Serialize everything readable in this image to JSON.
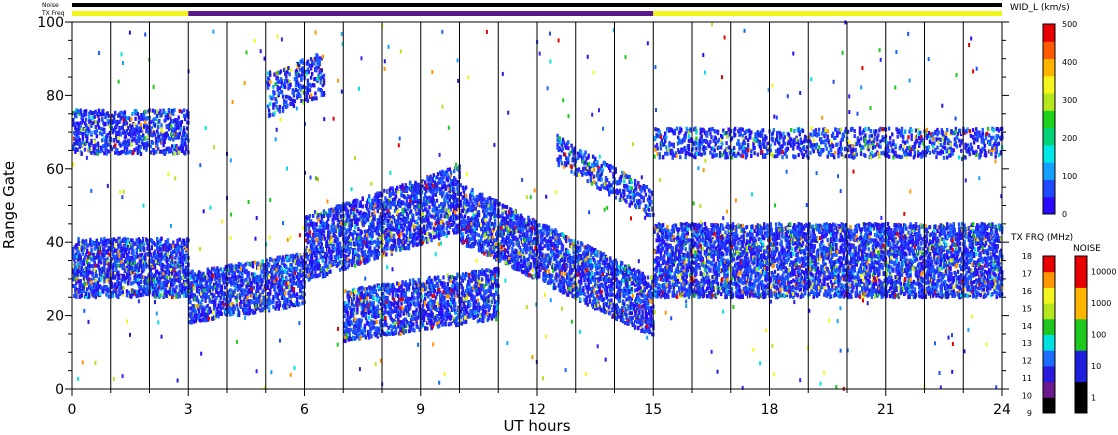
{
  "header": {
    "noise_label": "Noise",
    "txfreq_label": "TX Freq"
  },
  "chart_data": {
    "type": "heatmap",
    "xlabel": "UT hours",
    "ylabel": "Range Gate",
    "xlim": [
      0,
      24
    ],
    "ylim": [
      0,
      100
    ],
    "x_ticks": [
      0,
      3,
      6,
      9,
      12,
      15,
      18,
      21,
      24
    ],
    "y_ticks": [
      0,
      20,
      40,
      60,
      80,
      100
    ],
    "scan_boundaries_hours": [
      1,
      2,
      3,
      4,
      5,
      6,
      7,
      8,
      9,
      10,
      11,
      12,
      13,
      14,
      15,
      16,
      17,
      18,
      19,
      20,
      21,
      22,
      23,
      24
    ],
    "mode_bar": [
      {
        "from": 0,
        "to": 3,
        "color": "#f5f51e"
      },
      {
        "from": 3,
        "to": 15,
        "color": "#5a1a8c"
      },
      {
        "from": 15,
        "to": 24,
        "color": "#f5f51e"
      }
    ],
    "noise_bar_color": "#000000",
    "scatter_bands": [
      {
        "from": 0,
        "to": 3,
        "center_start": 33,
        "center_end": 33,
        "width": 8,
        "density": 0.95
      },
      {
        "from": 0,
        "to": 3,
        "center_start": 70,
        "center_end": 70,
        "width": 6,
        "density": 0.6
      },
      {
        "from": 3,
        "to": 6,
        "center_start": 25,
        "center_end": 30,
        "width": 7,
        "density": 0.9
      },
      {
        "from": 5,
        "to": 6.5,
        "center_start": 80,
        "center_end": 86,
        "width": 6,
        "density": 0.45
      },
      {
        "from": 6,
        "to": 10,
        "center_start": 38,
        "center_end": 52,
        "width": 9,
        "density": 0.85
      },
      {
        "from": 7,
        "to": 11,
        "center_start": 20,
        "center_end": 26,
        "width": 7,
        "density": 0.85
      },
      {
        "from": 10,
        "to": 15,
        "center_start": 48,
        "center_end": 22,
        "width": 8,
        "density": 0.9
      },
      {
        "from": 12.5,
        "to": 15,
        "center_start": 65,
        "center_end": 50,
        "width": 4,
        "density": 0.55
      },
      {
        "from": 15,
        "to": 24,
        "center_start": 35,
        "center_end": 35,
        "width": 10,
        "density": 0.95
      },
      {
        "from": 15,
        "to": 24,
        "center_start": 67,
        "center_end": 67,
        "width": 4,
        "density": 0.5
      }
    ],
    "velocity_colorbar": {
      "label": "WID_L (km/s)",
      "ticks": [
        0,
        100,
        200,
        300,
        400,
        500
      ],
      "colors": [
        "#2a0aff",
        "#1e4bff",
        "#14a0ff",
        "#00e5e5",
        "#00d27a",
        "#1ed21e",
        "#b4e61e",
        "#f5f51e",
        "#ffb400",
        "#ff5a00",
        "#e60000"
      ]
    },
    "txfreq_colorbar": {
      "label": "TX FRQ (MHz)",
      "ticks": [
        9,
        10,
        11,
        12,
        13,
        14,
        15,
        16,
        17,
        18
      ],
      "colors": [
        "#000000",
        "#6a1a8c",
        "#2a1adc",
        "#1e6bff",
        "#00e0e0",
        "#1ec81e",
        "#b4e61e",
        "#f5f51e",
        "#ff9600",
        "#e60000"
      ]
    },
    "noise_colorbar": {
      "label": "NOISE",
      "ticks": [
        "1",
        "10",
        "100",
        "1000",
        "10000"
      ],
      "colors": [
        "#000000",
        "#1e1edc",
        "#1ec81e",
        "#ffb400",
        "#e60000"
      ]
    }
  }
}
